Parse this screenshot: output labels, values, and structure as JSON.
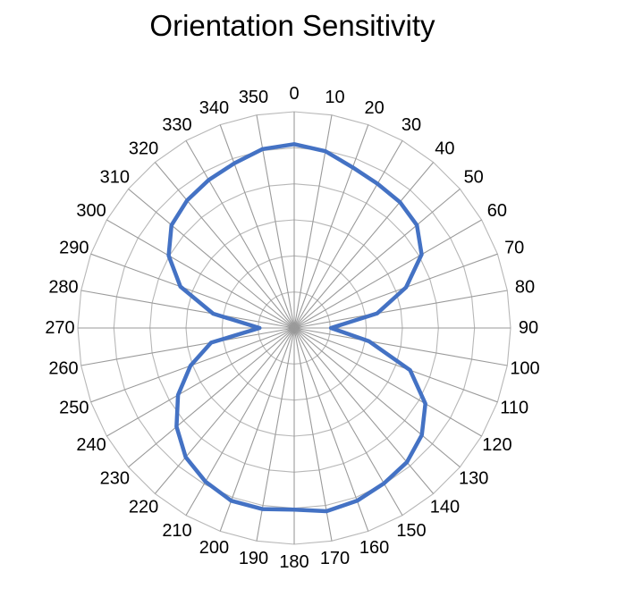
{
  "chart_data": {
    "type": "radar",
    "title": "Orientation Sensitivity",
    "angle_labels": [
      "0",
      "10",
      "20",
      "30",
      "40",
      "50",
      "60",
      "70",
      "80",
      "90",
      "100",
      "110",
      "120",
      "130",
      "140",
      "150",
      "160",
      "170",
      "180",
      "190",
      "200",
      "210",
      "220",
      "230",
      "240",
      "250",
      "260",
      "270",
      "280",
      "290",
      "300",
      "310",
      "320",
      "330",
      "340",
      "350"
    ],
    "rlim": [
      0,
      1
    ],
    "grid": true,
    "legend": "none",
    "series": [
      {
        "color": "#4472C4",
        "values": [
          0.85,
          0.83,
          0.79,
          0.77,
          0.76,
          0.74,
          0.68,
          0.55,
          0.39,
          0.17,
          0.35,
          0.57,
          0.7,
          0.77,
          0.81,
          0.83,
          0.85,
          0.86,
          0.84,
          0.85,
          0.85,
          0.82,
          0.78,
          0.71,
          0.62,
          0.51,
          0.39,
          0.16,
          0.38,
          0.56,
          0.67,
          0.74,
          0.77,
          0.79,
          0.81,
          0.84
        ]
      }
    ]
  }
}
